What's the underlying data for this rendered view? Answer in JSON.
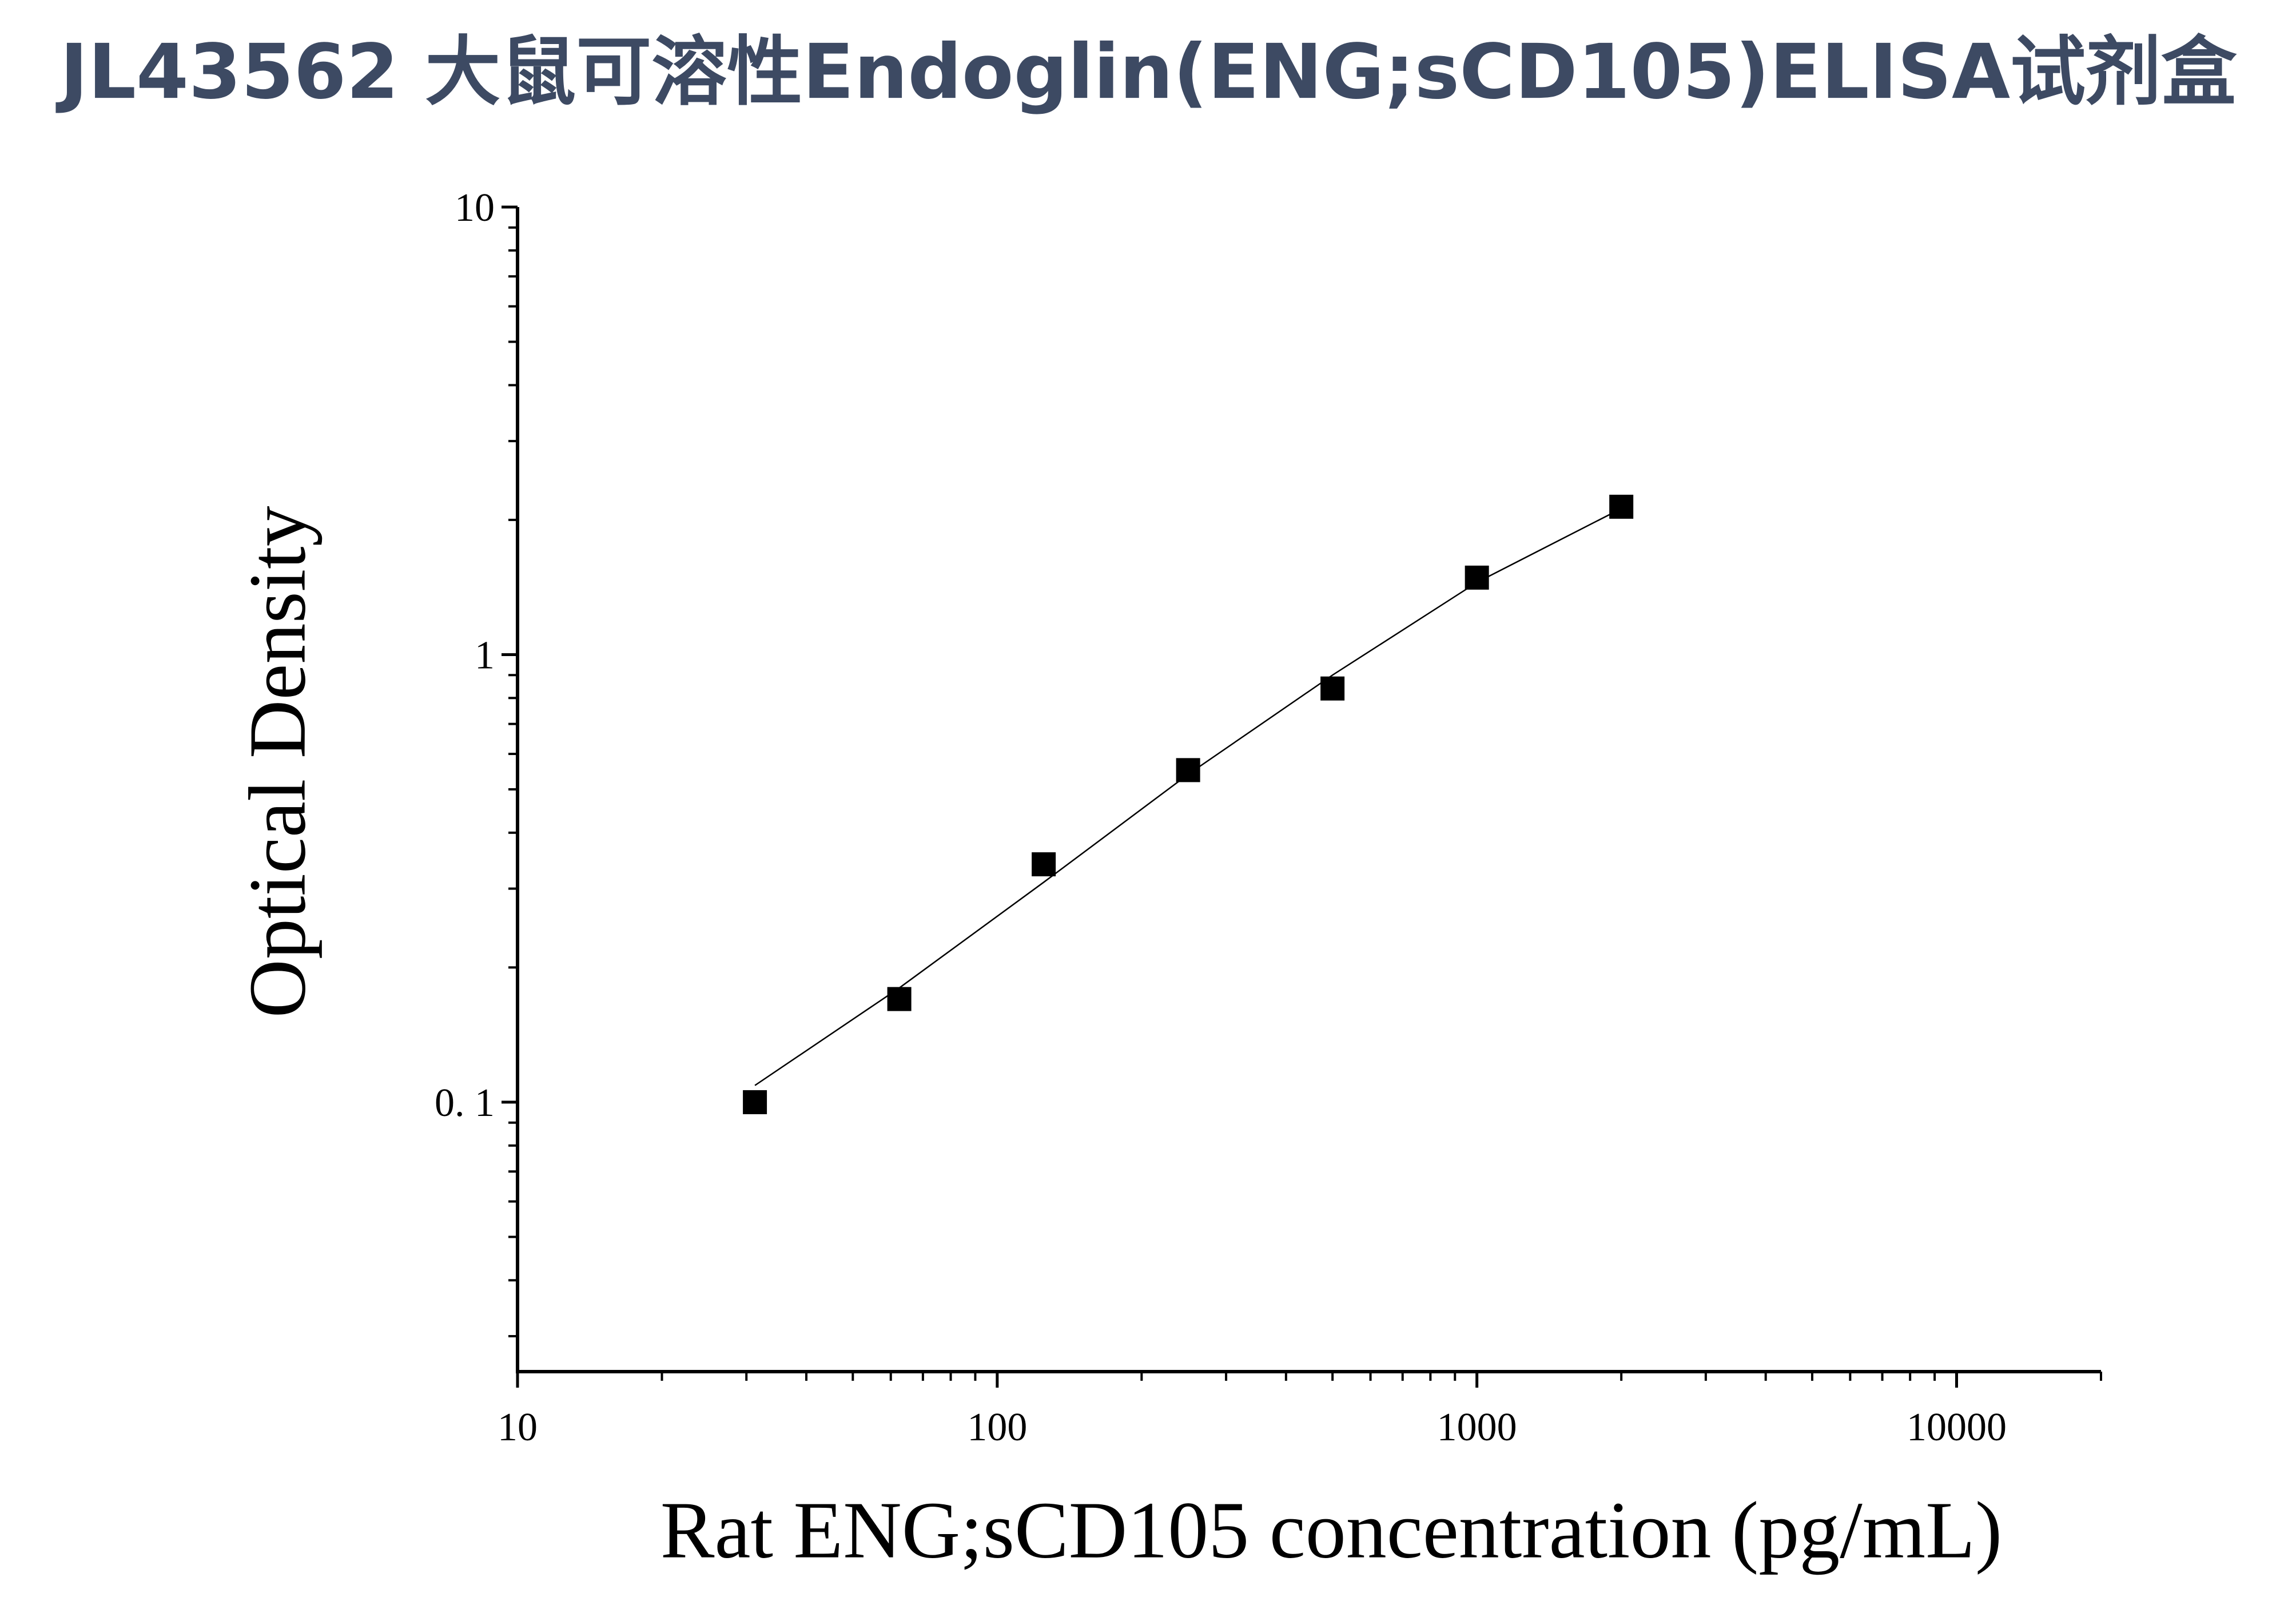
{
  "chart_data": {
    "type": "scatter",
    "title": "JL43562 大鼠可溶性Endoglin(ENG;sCD105)ELISA试剂盒",
    "x_label": "Rat ENG;sCD105 concentration (pg/mL)",
    "y_label": "Optical Density",
    "x": [
      31.25,
      62.5,
      125,
      250,
      500,
      1000,
      2000
    ],
    "series": [
      {
        "color": "#000000",
        "values": [
          0.1,
          0.17,
          0.34,
          0.552,
          0.84,
          1.486,
          2.14
        ]
      }
    ],
    "fit": {
      "x": [
        31.25,
        62.5,
        125,
        250,
        500,
        1000,
        2000
      ],
      "values": [
        0.109,
        0.18,
        0.31,
        0.54,
        0.9,
        1.45,
        2.12
      ],
      "color": "#000000"
    },
    "xlim": [
      10,
      20000
    ],
    "ylim": [
      0.025,
      10
    ],
    "xticks": [
      10,
      100,
      1000,
      10000
    ],
    "yticks": [
      {
        "value": 0.1,
        "label": "0. 1"
      },
      1,
      10
    ],
    "x_log": true,
    "y_log": true,
    "minor_ticks": true
  }
}
